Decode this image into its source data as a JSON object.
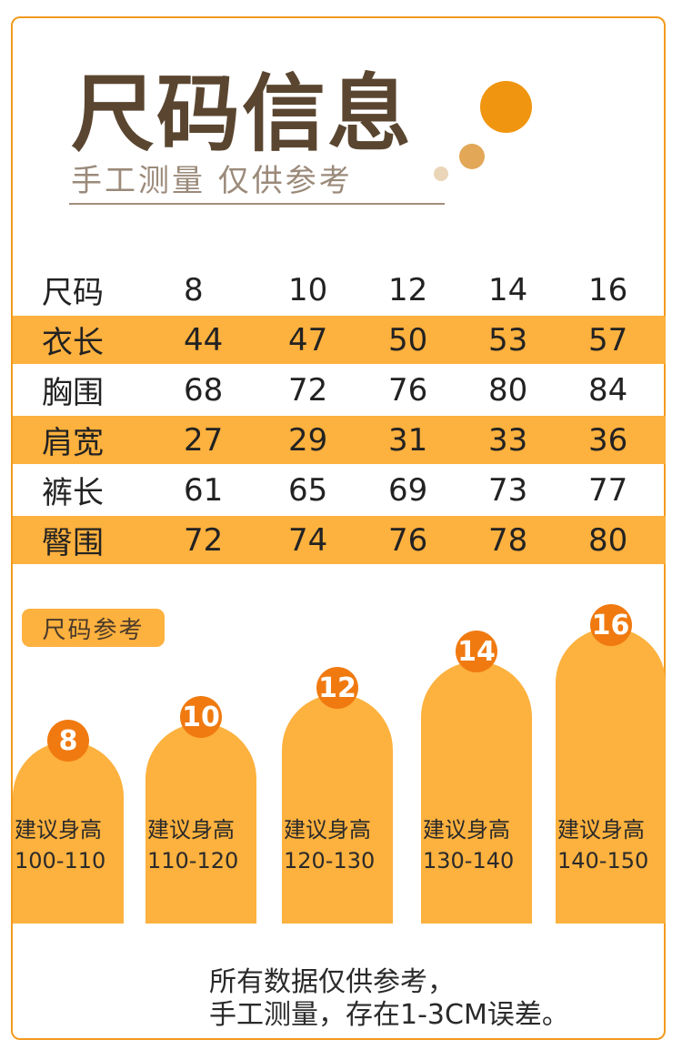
{
  "header": {
    "title": "尺码信息",
    "subtitle": "手工测量 仅供参考"
  },
  "size_table": {
    "header": {
      "label": "尺码",
      "values": [
        "8",
        "10",
        "12",
        "14",
        "16"
      ]
    },
    "rows": [
      {
        "label": "衣长",
        "values": [
          "44",
          "47",
          "50",
          "53",
          "57"
        ]
      },
      {
        "label": "胸围",
        "values": [
          "68",
          "72",
          "76",
          "80",
          "84"
        ]
      },
      {
        "label": "肩宽",
        "values": [
          "27",
          "29",
          "31",
          "33",
          "36"
        ]
      },
      {
        "label": "裤长",
        "values": [
          "61",
          "65",
          "69",
          "73",
          "77"
        ]
      },
      {
        "label": "臀围",
        "values": [
          "72",
          "74",
          "76",
          "78",
          "80"
        ]
      }
    ]
  },
  "reference": {
    "badge": "尺码参考",
    "items": [
      {
        "size": "8",
        "label": "建议身高",
        "range": "100-110"
      },
      {
        "size": "10",
        "label": "建议身高",
        "range": "110-120"
      },
      {
        "size": "12",
        "label": "建议身高",
        "range": "120-130"
      },
      {
        "size": "14",
        "label": "建议身高",
        "range": "130-140"
      },
      {
        "size": "16",
        "label": "建议身高",
        "range": "140-150"
      }
    ]
  },
  "footnote": {
    "line1": "所有数据仅供参考，",
    "line2": "手工测量，存在1-3CM误差。"
  },
  "colors": {
    "accent": "#fdb13e",
    "badge_circle": "#f07a10",
    "border": "#f29a1e",
    "title": "#5a4630"
  }
}
